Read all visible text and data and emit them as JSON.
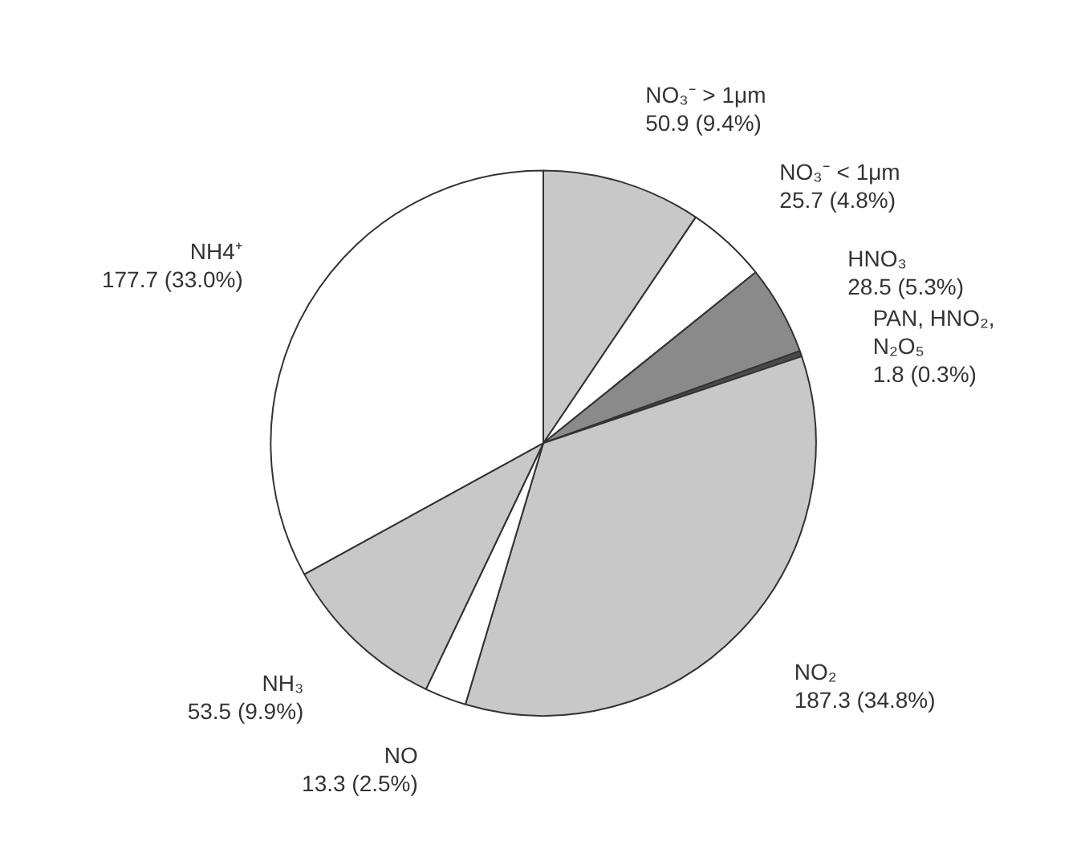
{
  "chart_data": {
    "type": "pie",
    "categories": [
      "NO₃⁻ > 1μm",
      "NO₃⁻ < 1μm",
      "HNO₃",
      "PAN, HNO₂, N₂O₅",
      "NO₂",
      "NO",
      "NH₃",
      "NH4⁺"
    ],
    "values": [
      50.9,
      25.7,
      28.5,
      1.8,
      187.3,
      13.3,
      53.5,
      177.7
    ],
    "value_labels": [
      "50.9 (9.4%)",
      "25.7 (4.8%)",
      "28.5 (5.3%)",
      "1.8 (0.3%)",
      "187.3 (34.8%)",
      "13.3 (2.5%)",
      "53.5 (9.9%)",
      "177.7 (33.0%)"
    ],
    "colors": [
      "#c8c8c8",
      "#ffffff",
      "#8a8a8a",
      "#4a4a4a",
      "#c8c8c8",
      "#ffffff",
      "#c8c8c8",
      "#ffffff"
    ]
  }
}
